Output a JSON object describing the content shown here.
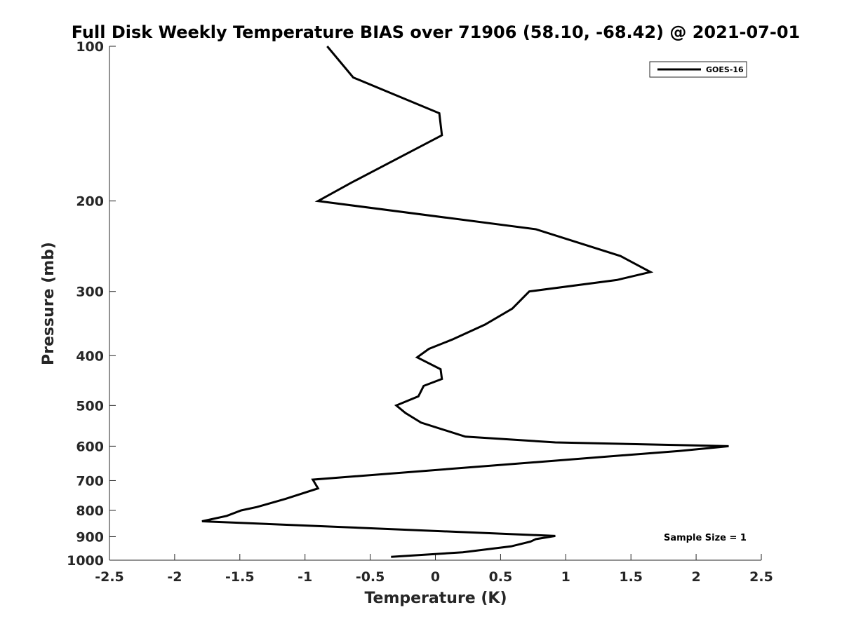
{
  "chart_data": {
    "type": "line",
    "title": "Full Disk Weekly Temperature BIAS over 71906 (58.10, -68.42) @ 2021-07-01",
    "xlabel": "Temperature (K)",
    "ylabel": "Pressure (mb)",
    "xlim": [
      -2.5,
      2.5
    ],
    "ylim": [
      1000,
      100
    ],
    "y_scale": "log",
    "y_reversed": true,
    "grid": false,
    "legend_position": "top-right",
    "x_ticks": [
      "-2.5",
      "-2",
      "-1.5",
      "-1",
      "-0.5",
      "0",
      "0.5",
      "1",
      "1.5",
      "2",
      "2.5"
    ],
    "y_ticks": [
      "100",
      "200",
      "300",
      "400",
      "500",
      "600",
      "700",
      "800",
      "900",
      "1000"
    ],
    "series": [
      {
        "name": "GOES-16",
        "color": "#000000",
        "x": [
          -0.83,
          -0.63,
          0.03,
          0.05,
          -0.64,
          -0.9,
          0.77,
          1.42,
          1.65,
          1.39,
          0.72,
          0.59,
          0.38,
          0.13,
          -0.05,
          -0.14,
          0.04,
          0.05,
          -0.09,
          -0.13,
          -0.3,
          -0.23,
          -0.11,
          0.23,
          0.92,
          2.25,
          1.87,
          -0.94,
          -0.9,
          -1.15,
          -1.37,
          -1.49,
          -1.6,
          -1.79,
          0.92,
          0.77,
          0.73,
          0.58,
          0.21,
          -0.34
        ],
        "y": [
          100,
          115,
          135,
          149,
          184,
          200,
          227,
          256,
          275,
          285,
          300,
          324,
          348,
          372,
          388,
          403,
          425,
          444,
          458,
          480,
          500,
          517,
          540,
          575,
          590,
          600,
          613,
          697,
          725,
          760,
          788,
          800,
          820,
          840,
          897,
          910,
          920,
          940,
          965,
          985
        ]
      }
    ],
    "annotation": "Sample Size = 1"
  }
}
